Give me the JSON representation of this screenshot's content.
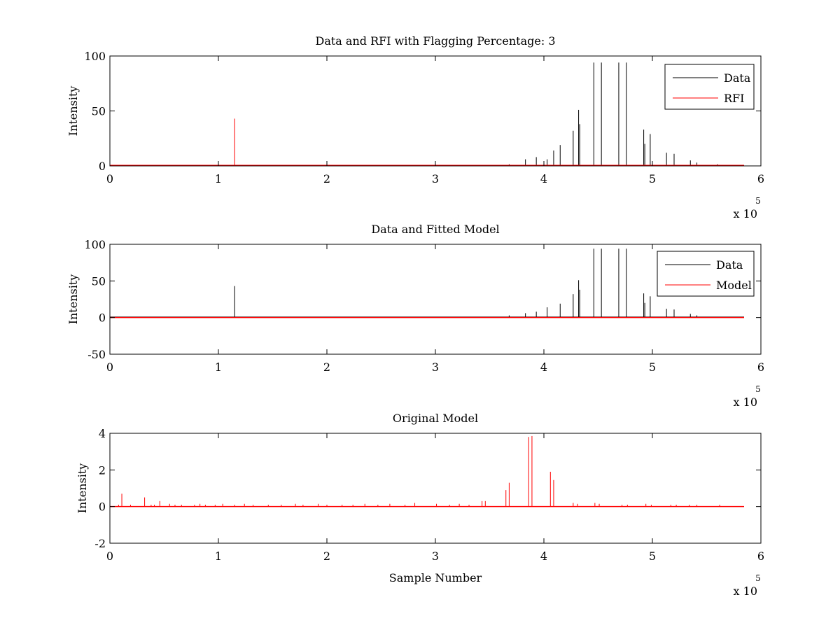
{
  "chart_data": [
    {
      "type": "line",
      "title": "Data and RFI with Flagging Percentage: 3",
      "xlabel": "",
      "ylabel": "Intensity",
      "xlim": [
        0,
        600000
      ],
      "ylim": [
        0,
        100
      ],
      "x_ticks": [
        0,
        1,
        2,
        3,
        4,
        5,
        6
      ],
      "y_ticks": [
        0,
        50,
        100
      ],
      "x_exponent_label": "x 10",
      "x_exponent": "5",
      "grid": false,
      "legend": "top-right",
      "legend_entries": [
        {
          "name": "Data",
          "color": "#000000"
        },
        {
          "name": "RFI",
          "color": "#ff0000"
        }
      ],
      "series": [
        {
          "name": "Data",
          "color": "#000000",
          "baseline": 0.5,
          "spikes": [
            [
              368000,
              1.5
            ],
            [
              383000,
              6
            ],
            [
              393000,
              8
            ],
            [
              403000,
              6
            ],
            [
              409000,
              14
            ],
            [
              415000,
              19
            ],
            [
              427000,
              32
            ],
            [
              432000,
              51
            ],
            [
              433000,
              38
            ],
            [
              446000,
              94
            ],
            [
              453000,
              94
            ],
            [
              469000,
              94
            ],
            [
              476000,
              94
            ],
            [
              492000,
              33
            ],
            [
              493000,
              20
            ],
            [
              498000,
              29
            ],
            [
              513000,
              12
            ],
            [
              520000,
              11
            ],
            [
              535000,
              5
            ],
            [
              541000,
              3
            ],
            [
              560000,
              1.5
            ]
          ]
        },
        {
          "name": "RFI",
          "color": "#ff0000",
          "baseline": 0.5,
          "spikes": [
            [
              115000,
              43
            ]
          ]
        }
      ]
    },
    {
      "type": "line",
      "title": "Data and Fitted Model",
      "xlabel": "",
      "ylabel": "Intensity",
      "xlim": [
        0,
        600000
      ],
      "ylim": [
        -50,
        100
      ],
      "x_ticks": [
        0,
        1,
        2,
        3,
        4,
        5,
        6
      ],
      "y_ticks": [
        -50,
        0,
        50,
        100
      ],
      "x_exponent_label": "x 10",
      "x_exponent": "5",
      "grid": false,
      "legend": "top-right",
      "legend_entries": [
        {
          "name": "Data",
          "color": "#000000"
        },
        {
          "name": "Model",
          "color": "#ff0000"
        }
      ],
      "series": [
        {
          "name": "Data",
          "color": "#000000",
          "baseline": 0.5,
          "spikes": [
            [
              115000,
              43
            ],
            [
              368000,
              3
            ],
            [
              383000,
              6
            ],
            [
              393000,
              8
            ],
            [
              403000,
              14
            ],
            [
              415000,
              19
            ],
            [
              427000,
              32
            ],
            [
              432000,
              51
            ],
            [
              433000,
              38
            ],
            [
              446000,
              94
            ],
            [
              453000,
              94
            ],
            [
              469000,
              94
            ],
            [
              476000,
              94
            ],
            [
              492000,
              33
            ],
            [
              493000,
              20
            ],
            [
              498000,
              29
            ],
            [
              513000,
              12
            ],
            [
              520000,
              11
            ],
            [
              535000,
              5
            ],
            [
              541000,
              3
            ]
          ]
        },
        {
          "name": "Model",
          "color": "#ff0000",
          "baseline": 0,
          "spikes": []
        }
      ]
    },
    {
      "type": "line",
      "title": "Original Model",
      "xlabel": "Sample Number",
      "ylabel": "Intensity",
      "xlim": [
        0,
        600000
      ],
      "ylim": [
        -2,
        4
      ],
      "x_ticks": [
        0,
        1,
        2,
        3,
        4,
        5,
        6
      ],
      "y_ticks": [
        -2,
        0,
        2,
        4
      ],
      "x_exponent_label": "x 10",
      "x_exponent": "5",
      "grid": false,
      "legend": "none",
      "legend_entries": [],
      "series": [
        {
          "name": "",
          "color": "#ff0000",
          "baseline": 0,
          "spikes": [
            [
              8000,
              0.1
            ],
            [
              11000,
              0.7
            ],
            [
              19000,
              0.1
            ],
            [
              32000,
              0.5
            ],
            [
              38000,
              0.1
            ],
            [
              41000,
              0.1
            ],
            [
              46000,
              0.3
            ],
            [
              55000,
              0.15
            ],
            [
              60000,
              0.1
            ],
            [
              66000,
              0.1
            ],
            [
              78000,
              0.1
            ],
            [
              83000,
              0.15
            ],
            [
              88000,
              0.1
            ],
            [
              97000,
              0.1
            ],
            [
              104000,
              0.15
            ],
            [
              115000,
              0.1
            ],
            [
              124000,
              0.15
            ],
            [
              132000,
              0.1
            ],
            [
              146000,
              0.1
            ],
            [
              158000,
              0.1
            ],
            [
              171000,
              0.15
            ],
            [
              178000,
              0.1
            ],
            [
              192000,
              0.15
            ],
            [
              200000,
              0.1
            ],
            [
              214000,
              0.1
            ],
            [
              224000,
              0.1
            ],
            [
              235000,
              0.15
            ],
            [
              247000,
              0.1
            ],
            [
              258000,
              0.15
            ],
            [
              272000,
              0.1
            ],
            [
              281000,
              0.2
            ],
            [
              301000,
              0.15
            ],
            [
              313000,
              0.1
            ],
            [
              322000,
              0.15
            ],
            [
              331000,
              0.1
            ],
            [
              343000,
              0.3
            ],
            [
              346000,
              0.3
            ],
            [
              365000,
              0.9
            ],
            [
              368000,
              1.3
            ],
            [
              386000,
              3.8
            ],
            [
              389000,
              3.85
            ],
            [
              406000,
              1.9
            ],
            [
              409000,
              1.45
            ],
            [
              427000,
              0.2
            ],
            [
              431000,
              0.15
            ],
            [
              447000,
              0.2
            ],
            [
              451000,
              0.15
            ],
            [
              472000,
              0.1
            ],
            [
              477000,
              0.1
            ],
            [
              494000,
              0.15
            ],
            [
              499000,
              0.1
            ],
            [
              517000,
              0.1
            ],
            [
              522000,
              0.1
            ],
            [
              534000,
              0.1
            ],
            [
              541000,
              0.1
            ],
            [
              562000,
              0.1
            ]
          ]
        }
      ]
    }
  ]
}
